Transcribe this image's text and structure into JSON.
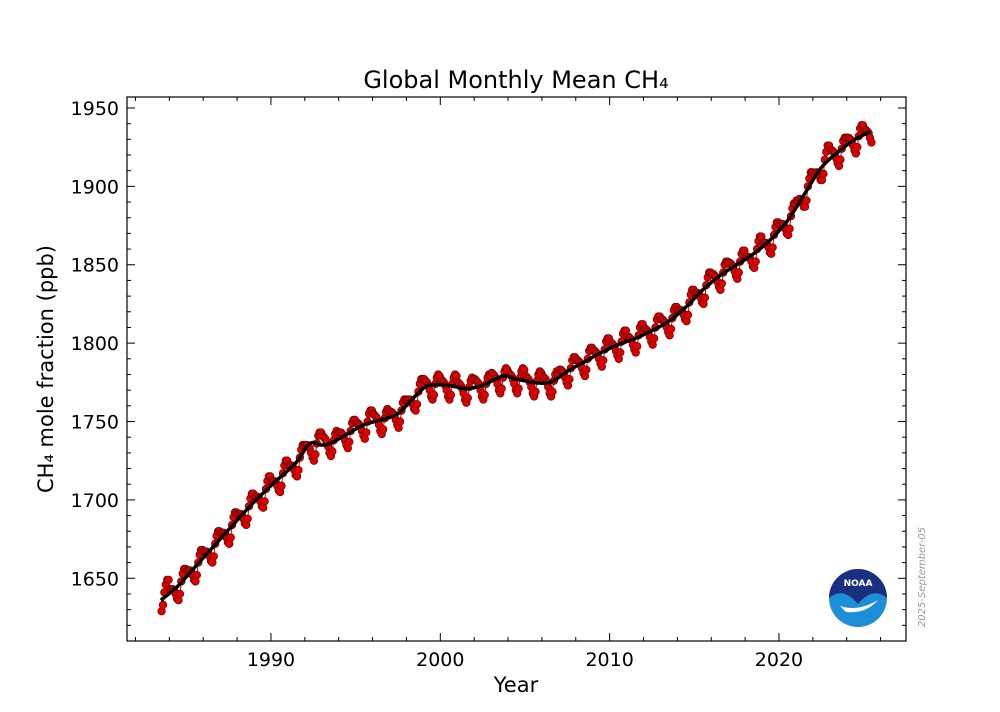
{
  "chart_data": {
    "type": "scatter",
    "title": "Global Monthly Mean CH₄",
    "xlabel": "Year",
    "ylabel": "CH₄ mole fraction (ppb)",
    "xlim": [
      1981.5,
      2027.5
    ],
    "ylim": [
      1610,
      1957
    ],
    "x_ticks": [
      1990,
      2000,
      2010,
      2020
    ],
    "y_ticks": [
      1650,
      1700,
      1750,
      1800,
      1850,
      1900,
      1950
    ],
    "x_minor_step": 2,
    "y_minor_step": 10,
    "grid": false,
    "tick_direction": "in",
    "colors": {
      "monthly": "#e00000",
      "monthly_edge": "#6a0000",
      "trend": "#000000",
      "noaa_dark": "#1a2f80",
      "noaa_light": "#1c8fd8"
    },
    "annotations": {
      "date_stamp": "2025-September-05",
      "logo": "NOAA"
    },
    "monthly": [
      {
        "year": 1983,
        "first_month": 7,
        "values": [
          1629,
          1633,
          1641,
          1646,
          1649,
          1649
        ]
      },
      {
        "year": 1984,
        "first_month": 1,
        "values": [
          1643,
          1643,
          1643,
          1642,
          1640,
          1637,
          1636,
          1640,
          1648,
          1653,
          1656,
          1656
        ]
      },
      {
        "year": 1985,
        "first_month": 1,
        "values": [
          1655,
          1655,
          1655,
          1654,
          1652,
          1649,
          1648,
          1652,
          1660,
          1665,
          1668,
          1668
        ]
      },
      {
        "year": 1986,
        "first_month": 1,
        "values": [
          1667,
          1667,
          1667,
          1666,
          1664,
          1661,
          1660,
          1664,
          1672,
          1677,
          1680,
          1680
        ]
      },
      {
        "year": 1987,
        "first_month": 1,
        "values": [
          1679,
          1679,
          1679,
          1678,
          1676,
          1673,
          1672,
          1676,
          1684,
          1689,
          1692,
          1692
        ]
      },
      {
        "year": 1988,
        "first_month": 1,
        "values": [
          1691,
          1691,
          1691,
          1690,
          1688,
          1685,
          1684,
          1688,
          1696,
          1701,
          1704,
          1704
        ]
      },
      {
        "year": 1989,
        "first_month": 1,
        "values": [
          1702,
          1702,
          1702,
          1701,
          1699,
          1696,
          1695,
          1699,
          1707,
          1712,
          1715,
          1715
        ]
      },
      {
        "year": 1990,
        "first_month": 1,
        "values": [
          1712,
          1712,
          1712,
          1711,
          1709,
          1706,
          1705,
          1709,
          1717,
          1722,
          1725,
          1725
        ]
      },
      {
        "year": 1991,
        "first_month": 1,
        "values": [
          1722,
          1722,
          1722,
          1721,
          1719,
          1716,
          1715,
          1719,
          1727,
          1732,
          1735,
          1735
        ]
      },
      {
        "year": 1992,
        "first_month": 1,
        "values": [
          1735,
          1735,
          1734,
          1733,
          1730,
          1727,
          1725,
          1729,
          1736,
          1741,
          1743,
          1743
        ]
      },
      {
        "year": 1993,
        "first_month": 1,
        "values": [
          1741,
          1740,
          1739,
          1737,
          1734,
          1730,
          1728,
          1731,
          1738,
          1742,
          1744,
          1743
        ]
      },
      {
        "year": 1994,
        "first_month": 1,
        "values": [
          1743,
          1743,
          1742,
          1741,
          1738,
          1735,
          1733,
          1737,
          1744,
          1749,
          1751,
          1751
        ]
      },
      {
        "year": 1995,
        "first_month": 1,
        "values": [
          1749,
          1749,
          1748,
          1747,
          1744,
          1741,
          1739,
          1743,
          1750,
          1755,
          1757,
          1757
        ]
      },
      {
        "year": 1996,
        "first_month": 1,
        "values": [
          1755,
          1754,
          1753,
          1751,
          1748,
          1744,
          1742,
          1745,
          1752,
          1756,
          1758,
          1757
        ]
      },
      {
        "year": 1997,
        "first_month": 1,
        "values": [
          1756,
          1756,
          1755,
          1754,
          1751,
          1748,
          1746,
          1750,
          1757,
          1762,
          1764,
          1764
        ]
      },
      {
        "year": 1998,
        "first_month": 1,
        "values": [
          1764,
          1764,
          1764,
          1763,
          1761,
          1758,
          1757,
          1761,
          1769,
          1774,
          1777,
          1777
        ]
      },
      {
        "year": 1999,
        "first_month": 1,
        "values": [
          1777,
          1776,
          1775,
          1773,
          1770,
          1766,
          1764,
          1767,
          1774,
          1778,
          1780,
          1779
        ]
      },
      {
        "year": 2000,
        "first_month": 1,
        "values": [
          1777,
          1776,
          1775,
          1773,
          1770,
          1766,
          1764,
          1767,
          1774,
          1778,
          1780,
          1779
        ]
      },
      {
        "year": 2001,
        "first_month": 1,
        "values": [
          1775,
          1774,
          1773,
          1771,
          1768,
          1764,
          1762,
          1765,
          1772,
          1776,
          1778,
          1777
        ]
      },
      {
        "year": 2002,
        "first_month": 1,
        "values": [
          1777,
          1776,
          1775,
          1773,
          1770,
          1766,
          1764,
          1767,
          1774,
          1778,
          1780,
          1779
        ]
      },
      {
        "year": 2003,
        "first_month": 1,
        "values": [
          1781,
          1780,
          1779,
          1777,
          1774,
          1770,
          1768,
          1771,
          1778,
          1782,
          1784,
          1783
        ]
      },
      {
        "year": 2004,
        "first_month": 1,
        "values": [
          1781,
          1780,
          1779,
          1777,
          1774,
          1770,
          1768,
          1771,
          1778,
          1782,
          1784,
          1783
        ]
      },
      {
        "year": 2005,
        "first_month": 1,
        "values": [
          1779,
          1778,
          1777,
          1775,
          1772,
          1768,
          1766,
          1769,
          1776,
          1780,
          1782,
          1781
        ]
      },
      {
        "year": 2006,
        "first_month": 1,
        "values": [
          1779,
          1778,
          1777,
          1775,
          1772,
          1768,
          1766,
          1769,
          1776,
          1780,
          1782,
          1781
        ]
      },
      {
        "year": 2007,
        "first_month": 1,
        "values": [
          1783,
          1783,
          1782,
          1781,
          1778,
          1775,
          1773,
          1777,
          1784,
          1789,
          1791,
          1791
        ]
      },
      {
        "year": 2008,
        "first_month": 1,
        "values": [
          1789,
          1789,
          1788,
          1787,
          1784,
          1781,
          1779,
          1783,
          1790,
          1795,
          1797,
          1797
        ]
      },
      {
        "year": 2009,
        "first_month": 1,
        "values": [
          1795,
          1795,
          1794,
          1793,
          1790,
          1787,
          1785,
          1789,
          1796,
          1801,
          1803,
          1803
        ]
      },
      {
        "year": 2010,
        "first_month": 1,
        "values": [
          1800,
          1800,
          1799,
          1798,
          1795,
          1792,
          1790,
          1794,
          1801,
          1806,
          1808,
          1808
        ]
      },
      {
        "year": 2011,
        "first_month": 1,
        "values": [
          1804,
          1804,
          1803,
          1802,
          1799,
          1796,
          1794,
          1798,
          1805,
          1810,
          1812,
          1812
        ]
      },
      {
        "year": 2012,
        "first_month": 1,
        "values": [
          1809,
          1809,
          1808,
          1807,
          1804,
          1801,
          1799,
          1803,
          1810,
          1815,
          1817,
          1817
        ]
      },
      {
        "year": 2013,
        "first_month": 1,
        "values": [
          1815,
          1815,
          1814,
          1813,
          1810,
          1807,
          1805,
          1809,
          1816,
          1821,
          1823,
          1823
        ]
      },
      {
        "year": 2014,
        "first_month": 1,
        "values": [
          1821,
          1821,
          1821,
          1820,
          1818,
          1815,
          1814,
          1818,
          1826,
          1831,
          1834,
          1834
        ]
      },
      {
        "year": 2015,
        "first_month": 1,
        "values": [
          1832,
          1832,
          1832,
          1831,
          1829,
          1826,
          1825,
          1829,
          1837,
          1842,
          1845,
          1845
        ]
      },
      {
        "year": 2016,
        "first_month": 1,
        "values": [
          1844,
          1844,
          1843,
          1842,
          1839,
          1836,
          1834,
          1838,
          1845,
          1850,
          1852,
          1852
        ]
      },
      {
        "year": 2017,
        "first_month": 1,
        "values": [
          1851,
          1851,
          1850,
          1849,
          1846,
          1843,
          1841,
          1845,
          1852,
          1857,
          1859,
          1859
        ]
      },
      {
        "year": 2018,
        "first_month": 1,
        "values": [
          1855,
          1855,
          1855,
          1854,
          1852,
          1849,
          1848,
          1852,
          1860,
          1865,
          1868,
          1868
        ]
      },
      {
        "year": 2019,
        "first_month": 1,
        "values": [
          1864,
          1864,
          1864,
          1863,
          1861,
          1858,
          1857,
          1861,
          1869,
          1874,
          1877,
          1877
        ]
      },
      {
        "year": 2020,
        "first_month": 1,
        "values": [
          1876,
          1876,
          1876,
          1875,
          1873,
          1870,
          1869,
          1873,
          1881,
          1886,
          1889,
          1889
        ]
      },
      {
        "year": 2021,
        "first_month": 1,
        "values": [
          1891,
          1891,
          1892,
          1891,
          1890,
          1887,
          1887,
          1891,
          1900,
          1905,
          1909,
          1909
        ]
      },
      {
        "year": 2022,
        "first_month": 1,
        "values": [
          1908,
          1908,
          1909,
          1908,
          1907,
          1904,
          1904,
          1908,
          1917,
          1922,
          1926,
          1926
        ]
      },
      {
        "year": 2023,
        "first_month": 1,
        "values": [
          1923,
          1923,
          1922,
          1921,
          1918,
          1915,
          1913,
          1917,
          1924,
          1929,
          1931,
          1931
        ]
      },
      {
        "year": 2024,
        "first_month": 1,
        "values": [
          1931,
          1931,
          1930,
          1929,
          1926,
          1923,
          1921,
          1925,
          1932,
          1937,
          1939,
          1939
        ]
      },
      {
        "year": 2025,
        "first_month": 1,
        "values": [
          1936,
          1936,
          1935,
          1934,
          1931,
          1928
        ]
      }
    ],
    "trend": [
      [
        1983.5,
        1636
      ],
      [
        1984.5,
        1645
      ],
      [
        1985.5,
        1657
      ],
      [
        1986.5,
        1669
      ],
      [
        1987.5,
        1681
      ],
      [
        1988.5,
        1693
      ],
      [
        1989.5,
        1704
      ],
      [
        1990.5,
        1714
      ],
      [
        1991.5,
        1724
      ],
      [
        1992.3,
        1736
      ],
      [
        1993.0,
        1735
      ],
      [
        1993.5,
        1736
      ],
      [
        1994.5,
        1742
      ],
      [
        1995.5,
        1748
      ],
      [
        1996.5,
        1751
      ],
      [
        1997.5,
        1755
      ],
      [
        1998.5,
        1766
      ],
      [
        1999.3,
        1773
      ],
      [
        2000.5,
        1773
      ],
      [
        2001.5,
        1771
      ],
      [
        2002.5,
        1773
      ],
      [
        2003.7,
        1779
      ],
      [
        2004.5,
        1777
      ],
      [
        2005.5,
        1775
      ],
      [
        2006.5,
        1775
      ],
      [
        2007.5,
        1782
      ],
      [
        2008.5,
        1788
      ],
      [
        2009.5,
        1794
      ],
      [
        2010.5,
        1799
      ],
      [
        2011.5,
        1803
      ],
      [
        2012.5,
        1808
      ],
      [
        2013.5,
        1814
      ],
      [
        2014.5,
        1823
      ],
      [
        2015.5,
        1834
      ],
      [
        2016.5,
        1843
      ],
      [
        2017.5,
        1850
      ],
      [
        2018.5,
        1857
      ],
      [
        2019.5,
        1866
      ],
      [
        2020.5,
        1878
      ],
      [
        2021.5,
        1895
      ],
      [
        2022.5,
        1912
      ],
      [
        2023.5,
        1922
      ],
      [
        2024.5,
        1930
      ],
      [
        2025.4,
        1935
      ]
    ]
  }
}
